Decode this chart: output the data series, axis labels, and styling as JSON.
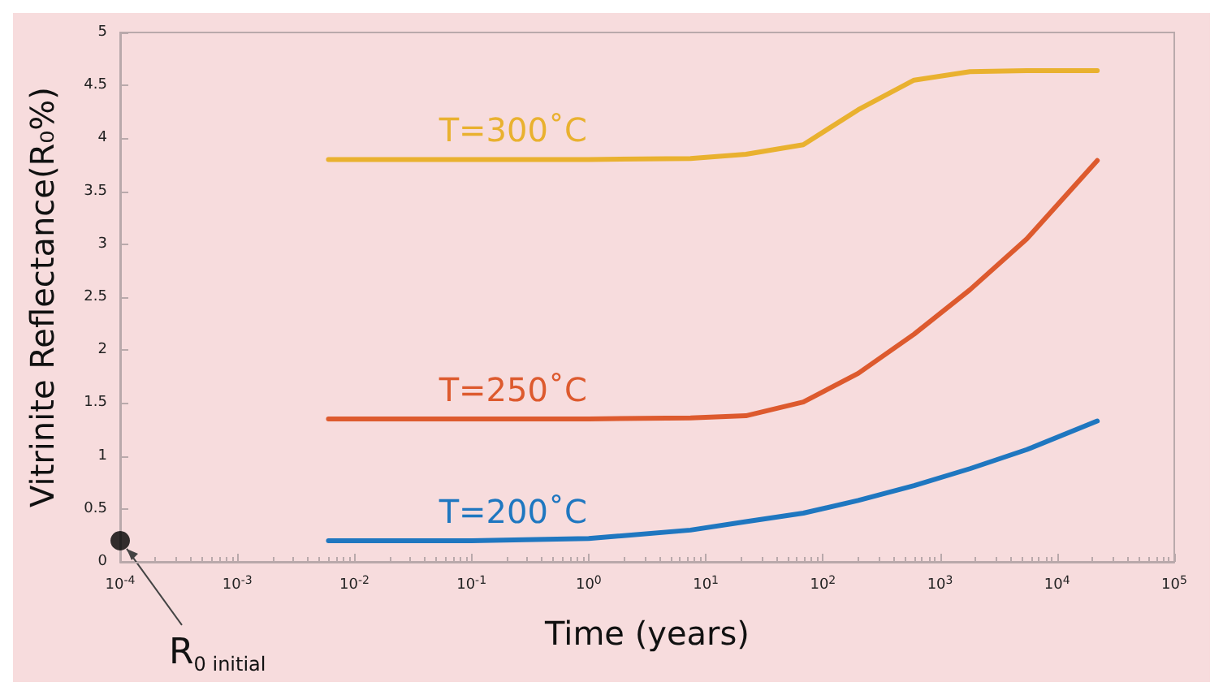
{
  "chart_data": {
    "type": "line",
    "xlabel": "Time (years)",
    "ylabel": "Vitrinite Reflectance(R₀%)",
    "log": "x",
    "grid": false,
    "legend": false,
    "marker": "none",
    "line_style": "solid",
    "xlim": [
      0.0001,
      100000
    ],
    "xticks": [
      {
        "value": 0.0001,
        "label": "10$^{-4}$"
      },
      {
        "value": 0.001,
        "label": "10$^{-3}$"
      },
      {
        "value": 0.01,
        "label": "10$^{-2}$"
      },
      {
        "value": 0.1,
        "label": "10$^{-1}$"
      },
      {
        "value": 1,
        "label": "10$^{0}$"
      },
      {
        "value": 10,
        "label": "10$^{1}$"
      },
      {
        "value": 100,
        "label": "10$^{2}$"
      },
      {
        "value": 1000,
        "label": "10$^{3}$"
      },
      {
        "value": 10000,
        "label": "10$^{4}$"
      },
      {
        "value": 100000,
        "label": "10$^{5}$"
      }
    ],
    "ylim": [
      0,
      5
    ],
    "yticks": [
      0,
      0.5,
      1,
      1.5,
      2,
      2.5,
      3,
      3.5,
      4,
      4.5,
      5
    ],
    "x": [
      0.006,
      0.1,
      1,
      7.4,
      22,
      68,
      200,
      600,
      1800,
      5500,
      22000
    ],
    "series": [
      {
        "name": "T=300˚C",
        "color": "#e9b12f",
        "values": [
          3.8,
          3.8,
          3.8,
          3.81,
          3.85,
          3.94,
          4.27,
          4.55,
          4.63,
          4.64,
          4.64
        ]
      },
      {
        "name": "T=250˚C",
        "color": "#dd5a2e",
        "values": [
          1.35,
          1.35,
          1.35,
          1.36,
          1.38,
          1.51,
          1.78,
          2.15,
          2.57,
          3.05,
          3.79
        ]
      },
      {
        "name": "T=200˚C",
        "color": "#1f77c0",
        "values": [
          0.2,
          0.2,
          0.22,
          0.3,
          0.38,
          0.46,
          0.58,
          0.72,
          0.88,
          1.06,
          1.33
        ]
      },
      {
        "type": "scatter",
        "marker": "circle",
        "color": "#000000",
        "x": [
          0.0001
        ],
        "values": [
          0.2
        ]
      }
    ],
    "annotations": [
      {
        "text": "R$_{0 initial}$",
        "x": 0.0001,
        "y": 0.2
      }
    ]
  }
}
